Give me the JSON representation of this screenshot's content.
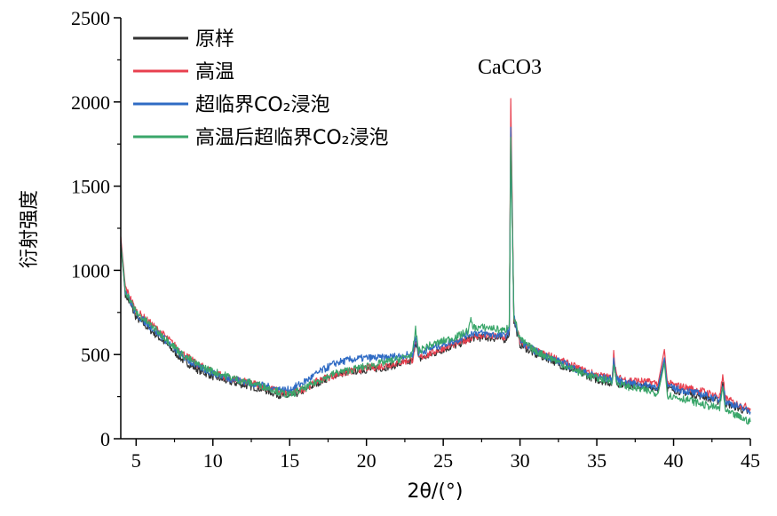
{
  "chart_data": {
    "type": "line",
    "xlabel": "2θ/(°)",
    "ylabel": "衍射强度",
    "xlim": [
      4,
      45
    ],
    "ylim": [
      0,
      2500
    ],
    "xticks": [
      5,
      10,
      15,
      20,
      25,
      30,
      35,
      40,
      45
    ],
    "yticks": [
      0,
      500,
      1000,
      1500,
      2000,
      2500
    ],
    "legend_position": "top-left",
    "grid": false,
    "annotations": [
      {
        "text": "CaCO3",
        "x": 29.4,
        "y": 2085
      }
    ],
    "series": [
      {
        "name": "原样",
        "color": "#333333",
        "points": [
          [
            4.0,
            1150
          ],
          [
            4.3,
            860
          ],
          [
            5,
            720
          ],
          [
            6,
            640
          ],
          [
            7,
            560
          ],
          [
            8,
            470
          ],
          [
            9,
            410
          ],
          [
            10,
            370
          ],
          [
            11,
            340
          ],
          [
            12,
            320
          ],
          [
            13,
            300
          ],
          [
            14,
            270
          ],
          [
            14.5,
            255
          ],
          [
            15,
            250
          ],
          [
            16,
            290
          ],
          [
            17,
            340
          ],
          [
            18,
            380
          ],
          [
            19,
            400
          ],
          [
            20,
            410
          ],
          [
            21,
            420
          ],
          [
            22,
            440
          ],
          [
            23,
            460
          ],
          [
            23.2,
            590
          ],
          [
            23.4,
            470
          ],
          [
            24,
            490
          ],
          [
            25,
            530
          ],
          [
            26,
            560
          ],
          [
            26.6,
            590
          ],
          [
            27,
            600
          ],
          [
            28,
            600
          ],
          [
            29,
            590
          ],
          [
            29.3,
            620
          ],
          [
            29.4,
            1900
          ],
          [
            29.6,
            700
          ],
          [
            30,
            560
          ],
          [
            31,
            500
          ],
          [
            32,
            470
          ],
          [
            33,
            420
          ],
          [
            34,
            390
          ],
          [
            35,
            350
          ],
          [
            36,
            330
          ],
          [
            36.1,
            460
          ],
          [
            36.3,
            330
          ],
          [
            37,
            320
          ],
          [
            38,
            310
          ],
          [
            39,
            300
          ],
          [
            39.4,
            460
          ],
          [
            39.6,
            300
          ],
          [
            40,
            290
          ],
          [
            41,
            270
          ],
          [
            42,
            250
          ],
          [
            43,
            220
          ],
          [
            43.2,
            330
          ],
          [
            43.4,
            210
          ],
          [
            44,
            190
          ],
          [
            45,
            150
          ]
        ]
      },
      {
        "name": "高温",
        "color": "#e8404f",
        "points": [
          [
            4.0,
            1200
          ],
          [
            4.3,
            900
          ],
          [
            5,
            760
          ],
          [
            6,
            680
          ],
          [
            7,
            600
          ],
          [
            8,
            510
          ],
          [
            9,
            440
          ],
          [
            10,
            400
          ],
          [
            11,
            360
          ],
          [
            12,
            340
          ],
          [
            13,
            320
          ],
          [
            14,
            290
          ],
          [
            14.5,
            275
          ],
          [
            15,
            270
          ],
          [
            16,
            300
          ],
          [
            17,
            350
          ],
          [
            18,
            380
          ],
          [
            19,
            400
          ],
          [
            20,
            420
          ],
          [
            21,
            430
          ],
          [
            22,
            450
          ],
          [
            23,
            470
          ],
          [
            23.2,
            580
          ],
          [
            23.4,
            480
          ],
          [
            24,
            500
          ],
          [
            25,
            540
          ],
          [
            26,
            570
          ],
          [
            26.6,
            590
          ],
          [
            27,
            610
          ],
          [
            28,
            610
          ],
          [
            29,
            600
          ],
          [
            29.3,
            640
          ],
          [
            29.4,
            2020
          ],
          [
            29.6,
            720
          ],
          [
            30,
            580
          ],
          [
            31,
            520
          ],
          [
            32,
            490
          ],
          [
            33,
            450
          ],
          [
            34,
            410
          ],
          [
            35,
            380
          ],
          [
            36,
            360
          ],
          [
            36.1,
            510
          ],
          [
            36.3,
            360
          ],
          [
            37,
            350
          ],
          [
            38,
            340
          ],
          [
            39,
            330
          ],
          [
            39.4,
            530
          ],
          [
            39.6,
            330
          ],
          [
            40,
            320
          ],
          [
            41,
            300
          ],
          [
            42,
            280
          ],
          [
            43,
            250
          ],
          [
            43.2,
            360
          ],
          [
            43.4,
            240
          ],
          [
            44,
            210
          ],
          [
            45,
            180
          ]
        ]
      },
      {
        "name": "超临界CO₂浸泡",
        "color": "#2f6bc4",
        "points": [
          [
            4.0,
            1170
          ],
          [
            4.3,
            880
          ],
          [
            5,
            740
          ],
          [
            6,
            660
          ],
          [
            7,
            580
          ],
          [
            8,
            490
          ],
          [
            9,
            430
          ],
          [
            10,
            390
          ],
          [
            11,
            360
          ],
          [
            12,
            340
          ],
          [
            13,
            320
          ],
          [
            14,
            300
          ],
          [
            14.5,
            290
          ],
          [
            15,
            290
          ],
          [
            16,
            340
          ],
          [
            17,
            400
          ],
          [
            18,
            450
          ],
          [
            19,
            470
          ],
          [
            20,
            480
          ],
          [
            21,
            480
          ],
          [
            22,
            490
          ],
          [
            23,
            500
          ],
          [
            23.2,
            600
          ],
          [
            23.4,
            510
          ],
          [
            24,
            530
          ],
          [
            25,
            560
          ],
          [
            26,
            590
          ],
          [
            26.6,
            620
          ],
          [
            27,
            630
          ],
          [
            28,
            620
          ],
          [
            29,
            610
          ],
          [
            29.3,
            640
          ],
          [
            29.4,
            1850
          ],
          [
            29.6,
            720
          ],
          [
            30,
            580
          ],
          [
            31,
            520
          ],
          [
            32,
            480
          ],
          [
            33,
            440
          ],
          [
            34,
            400
          ],
          [
            35,
            370
          ],
          [
            36,
            350
          ],
          [
            36.1,
            470
          ],
          [
            36.3,
            350
          ],
          [
            37,
            330
          ],
          [
            38,
            320
          ],
          [
            39,
            310
          ],
          [
            39.4,
            480
          ],
          [
            39.6,
            310
          ],
          [
            40,
            300
          ],
          [
            41,
            280
          ],
          [
            42,
            260
          ],
          [
            43,
            230
          ],
          [
            43.2,
            330
          ],
          [
            43.4,
            220
          ],
          [
            44,
            200
          ],
          [
            45,
            160
          ]
        ]
      },
      {
        "name": "高温后超临界CO₂浸泡",
        "color": "#3aa66a",
        "points": [
          [
            4.0,
            1160
          ],
          [
            4.3,
            880
          ],
          [
            5,
            750
          ],
          [
            6,
            670
          ],
          [
            7,
            590
          ],
          [
            8,
            500
          ],
          [
            9,
            440
          ],
          [
            10,
            400
          ],
          [
            11,
            370
          ],
          [
            12,
            340
          ],
          [
            13,
            320
          ],
          [
            14,
            290
          ],
          [
            14.5,
            270
          ],
          [
            15,
            260
          ],
          [
            16,
            300
          ],
          [
            17,
            350
          ],
          [
            18,
            390
          ],
          [
            19,
            410
          ],
          [
            20,
            430
          ],
          [
            21,
            450
          ],
          [
            22,
            470
          ],
          [
            23,
            500
          ],
          [
            23.2,
            650
          ],
          [
            23.4,
            520
          ],
          [
            24,
            550
          ],
          [
            25,
            580
          ],
          [
            26,
            610
          ],
          [
            26.6,
            640
          ],
          [
            26.8,
            700
          ],
          [
            27,
            660
          ],
          [
            28,
            660
          ],
          [
            29,
            640
          ],
          [
            29.3,
            680
          ],
          [
            29.4,
            1790
          ],
          [
            29.6,
            730
          ],
          [
            30,
            590
          ],
          [
            31,
            520
          ],
          [
            32,
            480
          ],
          [
            33,
            430
          ],
          [
            34,
            390
          ],
          [
            35,
            360
          ],
          [
            36,
            340
          ],
          [
            36.1,
            440
          ],
          [
            36.3,
            330
          ],
          [
            37,
            310
          ],
          [
            38,
            290
          ],
          [
            39,
            270
          ],
          [
            39.4,
            450
          ],
          [
            39.6,
            260
          ],
          [
            40,
            250
          ],
          [
            41,
            230
          ],
          [
            42,
            200
          ],
          [
            43,
            180
          ],
          [
            43.2,
            300
          ],
          [
            43.4,
            160
          ],
          [
            44,
            140
          ],
          [
            45,
            100
          ]
        ]
      }
    ]
  }
}
